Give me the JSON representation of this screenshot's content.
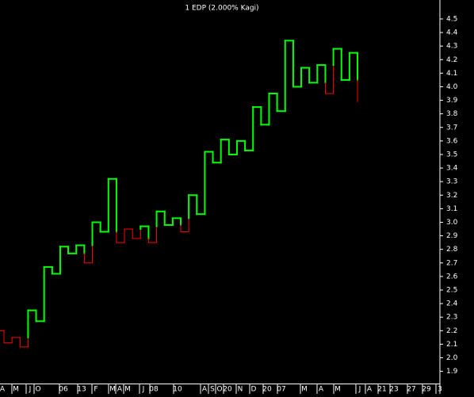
{
  "chart_data": {
    "type": "kagi",
    "title": "1 EDP (2.000% Kagi)",
    "values": [
      2.2,
      2.11,
      2.15,
      2.08,
      2.35,
      2.27,
      2.67,
      2.62,
      2.82,
      2.77,
      2.83,
      2.7,
      3.0,
      2.93,
      3.32,
      2.85,
      2.95,
      2.88,
      2.97,
      2.85,
      3.08,
      2.98,
      3.03,
      2.93,
      3.2,
      3.06,
      3.52,
      3.44,
      3.61,
      3.5,
      3.6,
      3.53,
      3.85,
      3.72,
      3.95,
      3.82,
      4.34,
      4.0,
      4.14,
      4.03,
      4.16,
      3.95,
      4.28,
      4.05,
      4.25,
      3.89
    ],
    "yang_color": "#00ff00",
    "yin_color": "#ff0000",
    "x_tick_labels": [
      "A",
      "M",
      "J",
      "O",
      "06",
      "13",
      "F",
      "M",
      "A",
      "M",
      "J",
      "08",
      "10",
      "A",
      "S",
      "O",
      "20",
      "N",
      "D",
      "20",
      "07",
      "M",
      "A",
      "M",
      "J",
      "A",
      "21",
      "23",
      "27",
      "29",
      "3"
    ],
    "ylim": [
      1.81,
      4.64
    ],
    "yticks": [
      1.9,
      {
        "value": 2,
        "label": "2.0"
      },
      2.1,
      2.2,
      2.3,
      2.4,
      2.5,
      2.6,
      2.7,
      2.8,
      2.9,
      {
        "value": 3,
        "label": "3.0"
      },
      3.1,
      3.2,
      3.3,
      3.4,
      3.5,
      3.6,
      3.7,
      3.8,
      3.9,
      {
        "value": 4,
        "label": "4.0"
      },
      4.1,
      4.2,
      4.3,
      4.4,
      4.5
    ]
  }
}
